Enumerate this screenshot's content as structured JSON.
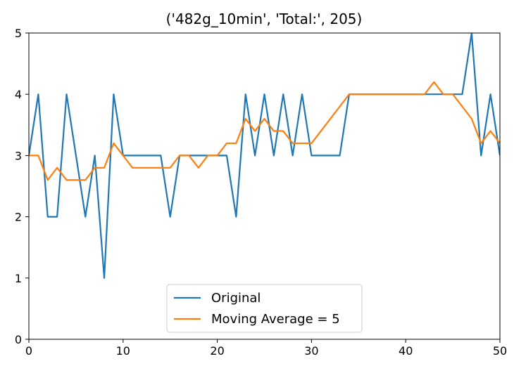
{
  "chart_data": {
    "type": "line",
    "title": "('482g_10min', 'Total:', 205)",
    "xlabel": "",
    "ylabel": "",
    "xlim": [
      0,
      50
    ],
    "ylim": [
      0,
      5
    ],
    "xticks": [
      0,
      10,
      20,
      30,
      40,
      50
    ],
    "yticks": [
      0,
      1,
      2,
      3,
      4,
      5
    ],
    "grid": false,
    "legend_position": "lower-center",
    "series": [
      {
        "name": "Original",
        "color": "#1f77b4",
        "x": [
          0,
          1,
          2,
          3,
          4,
          5,
          6,
          7,
          8,
          9,
          10,
          11,
          12,
          13,
          14,
          15,
          16,
          17,
          18,
          19,
          20,
          21,
          22,
          23,
          24,
          25,
          26,
          27,
          28,
          29,
          30,
          31,
          32,
          33,
          34,
          35,
          36,
          37,
          38,
          39,
          40,
          41,
          42,
          43,
          44,
          45,
          46,
          47,
          48,
          49,
          50
        ],
        "values": [
          3,
          4,
          2,
          2,
          4,
          3,
          2,
          3,
          1,
          4,
          3,
          3,
          3,
          3,
          3,
          2,
          3,
          3,
          3,
          3,
          3,
          3,
          2,
          4,
          3,
          4,
          3,
          4,
          3,
          4,
          3,
          3,
          3,
          3,
          4,
          4,
          4,
          4,
          4,
          4,
          4,
          4,
          4,
          4,
          4,
          4,
          4,
          5,
          3,
          4,
          3
        ]
      },
      {
        "name": "Moving Average = 5",
        "color": "#ff7f0e",
        "x": [
          0,
          1,
          2,
          3,
          4,
          5,
          6,
          7,
          8,
          9,
          10,
          11,
          12,
          13,
          14,
          15,
          16,
          17,
          18,
          19,
          20,
          21,
          22,
          23,
          24,
          25,
          26,
          27,
          28,
          29,
          30,
          31,
          32,
          33,
          34,
          35,
          36,
          37,
          38,
          39,
          40,
          41,
          42,
          43,
          44,
          45,
          46,
          47,
          48,
          49,
          50
        ],
        "values": [
          3,
          3,
          2.6,
          2.8,
          2.6,
          2.6,
          2.6,
          2.8,
          2.8,
          3.2,
          3,
          2.8,
          2.8,
          2.8,
          2.8,
          2.8,
          3,
          3,
          2.8,
          3,
          3,
          3.2,
          3.2,
          3.6,
          3.4,
          3.6,
          3.4,
          3.4,
          3.2,
          3.2,
          3.2,
          3.4,
          3.6,
          3.8,
          4,
          4,
          4,
          4,
          4,
          4,
          4,
          4,
          4,
          4.2,
          4,
          4,
          3.8,
          3.6,
          3.2,
          3.4,
          3.2
        ]
      }
    ]
  }
}
